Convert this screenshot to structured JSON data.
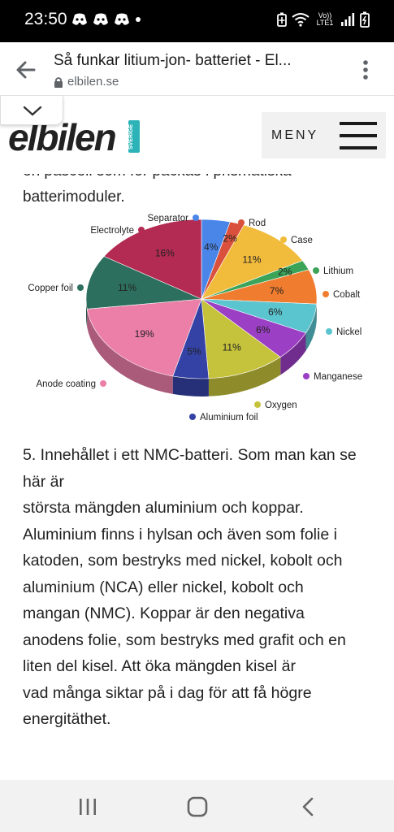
{
  "status_bar": {
    "time": "23:50",
    "notification_icons": [
      "discord-icon",
      "discord-icon",
      "discord-icon",
      "dot-icon"
    ],
    "system_icons": [
      "battery-saver-icon",
      "wifi-icon",
      "volte-icon",
      "signal-icon",
      "battery-icon"
    ],
    "volte_label": "Vo)) LTE1"
  },
  "browser": {
    "title": "Så funkar litium-jon- batteriet - El...",
    "url": "elbilen.se"
  },
  "site": {
    "logo_text": "elbilen",
    "logo_tag": "SVERIGE",
    "menu_label": "MENY"
  },
  "article": {
    "cut_line": "en pascell som for packas i prismatiska",
    "intro_line": "batterimoduler.",
    "caption_lines": [
      "5. Innehållet i ett NMC-batteri. Som man kan se",
      "här är",
      "största mängden aluminium och koppar.",
      "Aluminium finns i hylsan och även som folie i",
      "katoden, som bestryks med nickel, kobolt och",
      "aluminium (NCA) eller nickel, kobolt och",
      "mangan (NMC). Koppar är den negativa",
      "anodens folie, som bestryks med grafit och en",
      "liten del kisel. Att öka mängden kisel är",
      "vad många siktar på i dag för att få högre",
      "energitäthet."
    ]
  },
  "chart_data": {
    "type": "pie",
    "title": "",
    "legend_placement": "labels around pie",
    "slices": [
      {
        "name": "Separator",
        "value": 4,
        "label": "4%",
        "color": "#4a86e8"
      },
      {
        "name": "Rod",
        "value": 2,
        "label": "2%",
        "color": "#d9503c"
      },
      {
        "name": "Case",
        "value": 11,
        "label": "11%",
        "color": "#f1bb3c"
      },
      {
        "name": "Lithium",
        "value": 2,
        "label": "2%",
        "color": "#3ba459"
      },
      {
        "name": "Cobalt",
        "value": 7,
        "label": "7%",
        "color": "#f07c2f"
      },
      {
        "name": "Nickel",
        "value": 6,
        "label": "6%",
        "color": "#5ac4cf"
      },
      {
        "name": "Manganese",
        "value": 6,
        "label": "6%",
        "color": "#9b3fc4"
      },
      {
        "name": "Oxygen",
        "value": 11,
        "label": "11%",
        "color": "#c5c23b"
      },
      {
        "name": "Aluminium foil",
        "value": 5,
        "label": "5%",
        "color": "#3442a6"
      },
      {
        "name": "Anode coating",
        "value": 19,
        "label": "19%",
        "color": "#ec7fa8"
      },
      {
        "name": "Copper foil",
        "value": 11,
        "label": "11%",
        "color": "#2d6f5e"
      },
      {
        "name": "Electrolyte",
        "value": 16,
        "label": "16%",
        "color": "#b32a52"
      }
    ]
  },
  "nav": {
    "recents": "recents-icon",
    "home": "home-icon",
    "back": "back-icon"
  }
}
